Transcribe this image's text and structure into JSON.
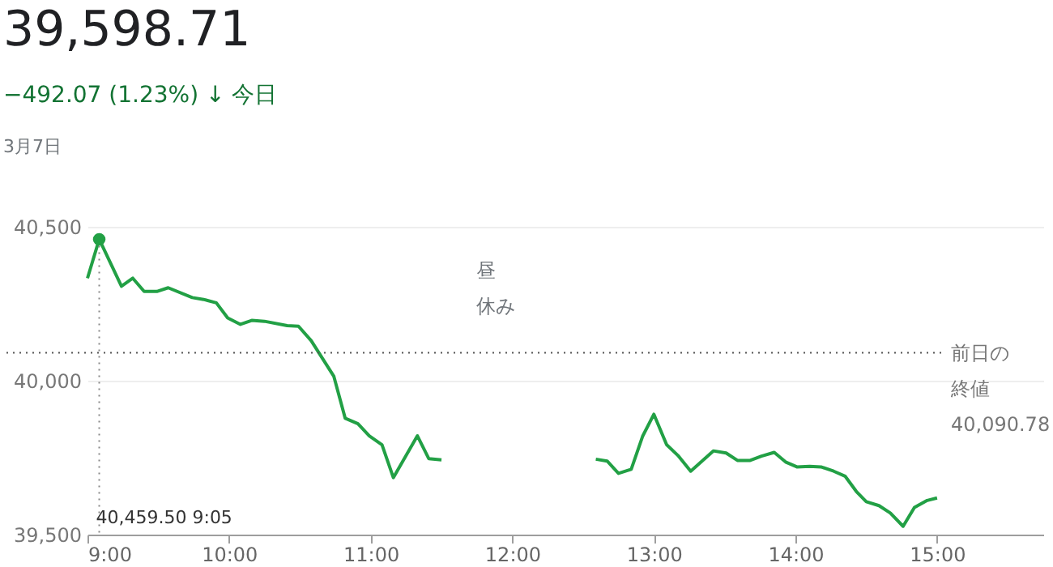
{
  "chart_data": {
    "type": "line",
    "title": "39,598.71",
    "subtitle": "−492.07 (1.23%) ↓ 今日",
    "annotations": [
      "3月7日",
      "昼",
      "休み",
      {
        "text": "40,459.50  9:05",
        "x": 9.083,
        "y": 40459.5
      }
    ],
    "x": [
      9.0,
      9.083,
      9.24,
      9.32,
      9.4,
      9.49,
      9.57,
      9.74,
      9.82,
      9.91,
      9.99,
      10.08,
      10.16,
      10.25,
      10.41,
      10.49,
      10.58,
      10.74,
      10.82,
      10.91,
      10.99,
      11.08,
      11.16,
      11.33,
      11.41,
      11.5,
      12.0,
      12.59,
      12.67,
      12.75,
      12.84,
      12.92,
      13.0,
      13.09,
      13.17,
      13.26,
      13.42,
      13.51,
      13.59,
      13.68,
      13.76,
      13.85,
      13.93,
      14.01,
      14.1,
      14.18,
      14.27,
      14.35,
      14.43,
      14.5,
      14.59,
      14.67,
      14.76,
      14.84,
      14.93,
      15.0
    ],
    "series": [
      {
        "color": "#22a045",
        "values": [
          40333,
          40459.5,
          40307,
          40333,
          40290,
          40290,
          40302,
          40270,
          40264,
          40253,
          40204,
          40183,
          40196,
          40193,
          40179,
          40177,
          40130,
          40014,
          39878,
          39860,
          39821,
          39792,
          39685,
          39821,
          39747,
          39743,
          null,
          39745,
          39739,
          39699,
          39712,
          39819,
          39891,
          39792,
          39757,
          39706,
          39772,
          39765,
          39741,
          39741,
          39755,
          39767,
          39736,
          39720,
          39722,
          39720,
          39706,
          39690,
          39640,
          39607,
          39594,
          39570,
          39527,
          39588,
          39611,
          39619
        ]
      }
    ],
    "xlim": [
      9,
      15.75
    ],
    "xticks": [
      {
        "value": 9,
        "label": "9:00"
      },
      {
        "value": 10,
        "label": "10:00"
      },
      {
        "value": 11,
        "label": "11:00"
      },
      {
        "value": 12,
        "label": "12:00"
      },
      {
        "value": 13,
        "label": "13:00"
      },
      {
        "value": 14,
        "label": "14:00"
      },
      {
        "value": 15,
        "label": "15:00"
      }
    ],
    "ylim": [
      39500,
      40500
    ],
    "yticks": [
      {
        "value": 39500,
        "label": "39,500"
      },
      {
        "value": 40000,
        "label": "40,000"
      },
      {
        "value": 40500,
        "label": "40,500"
      }
    ],
    "ref_lines": [
      {
        "axis": "y",
        "value": 40090.78,
        "label": "前日の終値 40,090.78",
        "line_style": "dotted",
        "color": "#555555"
      }
    ],
    "grid": "y",
    "legend": false,
    "marker": "none",
    "line_style": "solid"
  }
}
